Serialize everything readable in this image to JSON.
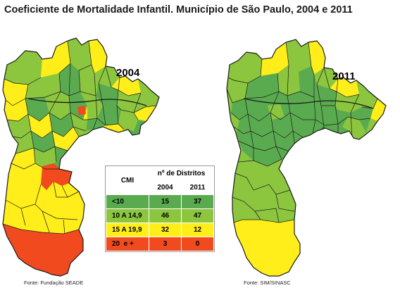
{
  "title": "Coeficiente de Mortalidade Infantil. Município de São Paulo, 2004 e 2011",
  "maps": [
    {
      "year": "2004",
      "source": "Fonte: Fundação SEADE"
    },
    {
      "year": "2011",
      "source": "Fonte: SIM/SINASC"
    }
  ],
  "colors": {
    "dark_green": "#5aab4f",
    "light_green": "#8cc63f",
    "yellow": "#ffee1a",
    "red": "#f04a1e",
    "border": "#1a1a1a"
  },
  "legend": {
    "header_cmi": "CMI",
    "header_count": "nº de Distritos",
    "year_a": "2004",
    "year_b": "2011",
    "rows": [
      {
        "category": "<10",
        "v2004": "15",
        "v2011": "37",
        "color": "#5aab4f"
      },
      {
        "category": "10 A 14,9",
        "v2004": "46",
        "v2011": "47",
        "color": "#8cc63f"
      },
      {
        "category": "15 A 19,9",
        "v2004": "32",
        "v2011": "12",
        "color": "#ffee1a"
      },
      {
        "category": "20  e +",
        "v2004": "3",
        "v2011": "0",
        "color": "#f04a1e"
      }
    ]
  }
}
